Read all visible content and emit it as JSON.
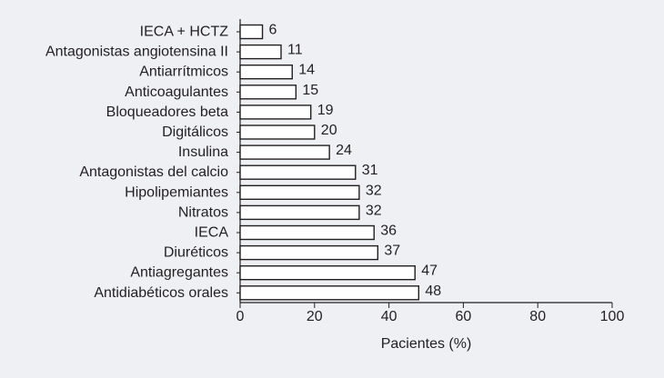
{
  "chart_data": {
    "type": "bar",
    "orientation": "horizontal",
    "categories": [
      "IECA + HCTZ",
      "Antagonistas angiotensina II",
      "Antiarrítmicos",
      "Anticoagulantes",
      "Bloqueadores beta",
      "Digitálicos",
      "Insulina",
      "Antagonistas del calcio",
      "Hipolipemiantes",
      "Nitratos",
      "IECA",
      "Diuréticos",
      "Antiagregantes",
      "Antidiabéticos orales"
    ],
    "values": [
      6,
      11,
      14,
      15,
      19,
      20,
      24,
      31,
      32,
      32,
      36,
      37,
      47,
      48
    ],
    "value_labels": [
      "6",
      "11",
      "14",
      "15",
      "19",
      "20",
      "24",
      "31",
      "32",
      "32",
      "36",
      "37",
      "47",
      "48"
    ],
    "xlabel": "Pacientes (%)",
    "ylabel": "",
    "xlim": [
      0,
      100
    ],
    "x_ticks": [
      "0",
      "20",
      "40",
      "60",
      "80",
      "100"
    ],
    "grid": false,
    "legend": "none",
    "colors": {
      "background": "#eef0f4",
      "bar_fill": "#ffffff",
      "bar_stroke": "#231f20",
      "axis": "#231f20",
      "text": "#231f20"
    }
  }
}
